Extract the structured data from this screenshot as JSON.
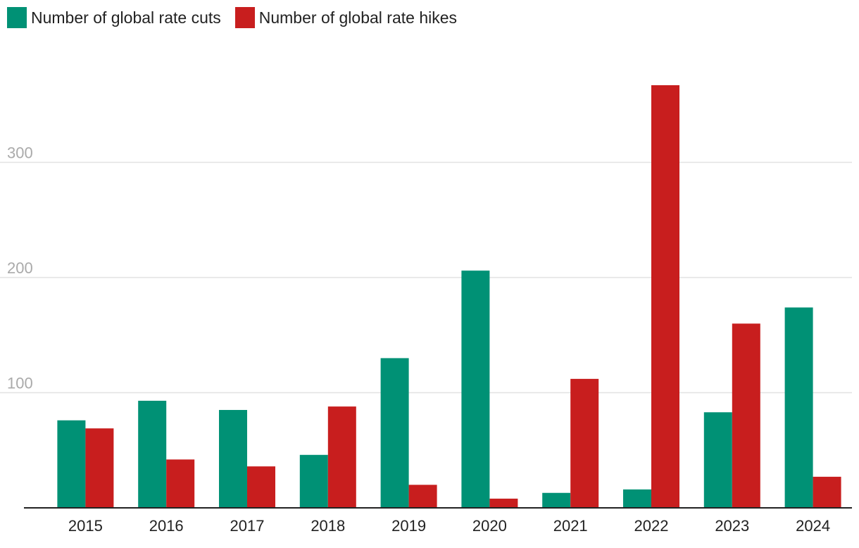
{
  "chart_data": {
    "type": "bar",
    "title": "",
    "xlabel": "",
    "ylabel": "",
    "categories": [
      "2015",
      "2016",
      "2017",
      "2018",
      "2019",
      "2020",
      "2021",
      "2022",
      "2023",
      "2024"
    ],
    "series": [
      {
        "name": "Number of global rate cuts",
        "color": "#009175",
        "values": [
          76,
          93,
          85,
          46,
          130,
          206,
          13,
          16,
          83,
          174
        ]
      },
      {
        "name": "Number of global rate hikes",
        "color": "#c81e1e",
        "values": [
          69,
          42,
          36,
          88,
          20,
          8,
          112,
          367,
          160,
          27
        ]
      }
    ],
    "ylim": [
      0,
      370
    ],
    "yticks": [
      100,
      200,
      300
    ],
    "ytick_labels": [
      "100",
      "200",
      "300"
    ],
    "grid": true,
    "legend_position": "top-left"
  }
}
